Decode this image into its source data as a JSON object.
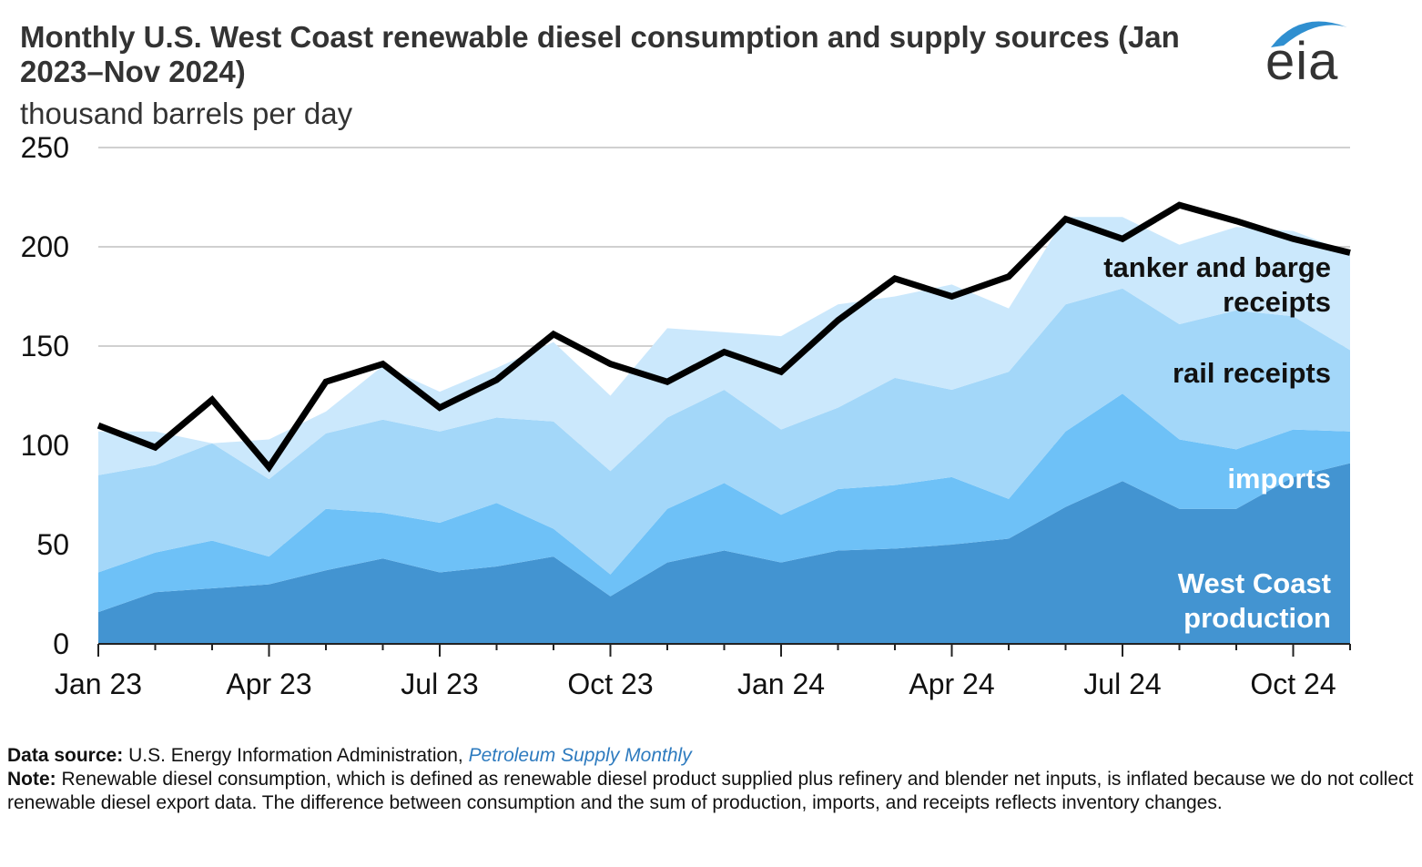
{
  "header": {
    "title": "Monthly U.S. West Coast renewable diesel consumption and supply sources (Jan 2023–Nov 2024)",
    "units": "thousand barrels per day",
    "logo": "eia"
  },
  "chart_data": {
    "type": "area",
    "stacked": true,
    "title": "Monthly U.S. West Coast renewable diesel consumption and supply sources (Jan 2023–Nov 2024)",
    "ylabel": "thousand barrels per day",
    "ylim": [
      0,
      250
    ],
    "yticks": [
      0,
      50,
      100,
      150,
      200,
      250
    ],
    "grid": true,
    "x": [
      "Jan 23",
      "Feb 23",
      "Mar 23",
      "Apr 23",
      "May 23",
      "Jun 23",
      "Jul 23",
      "Aug 23",
      "Sep 23",
      "Oct 23",
      "Nov 23",
      "Dec 23",
      "Jan 24",
      "Feb 24",
      "Mar 24",
      "Apr 24",
      "May 24",
      "Jun 24",
      "Jul 24",
      "Aug 24",
      "Sep 24",
      "Oct 24",
      "Nov 24"
    ],
    "xtick_labels": [
      {
        "index": 0,
        "label": "Jan 23"
      },
      {
        "index": 3,
        "label": "Apr 23"
      },
      {
        "index": 6,
        "label": "Jul 23"
      },
      {
        "index": 9,
        "label": "Oct 23"
      },
      {
        "index": 12,
        "label": "Jan 24"
      },
      {
        "index": 15,
        "label": "Apr 24"
      },
      {
        "index": 18,
        "label": "Jul 24"
      },
      {
        "index": 21,
        "label": "Oct 24"
      }
    ],
    "series": [
      {
        "name": "West Coast production",
        "label": "West Coast\nproduction",
        "color": "#4394d1",
        "label_color": "#ffffff",
        "values": [
          16,
          26,
          28,
          30,
          37,
          43,
          36,
          39,
          44,
          24,
          41,
          47,
          41,
          47,
          48,
          50,
          53,
          69,
          82,
          68,
          68,
          84,
          91
        ]
      },
      {
        "name": "imports",
        "label": "imports",
        "color": "#6ec1f7",
        "label_color": "#ffffff",
        "values": [
          20,
          20,
          24,
          14,
          31,
          23,
          25,
          32,
          14,
          11,
          27,
          34,
          24,
          31,
          32,
          34,
          20,
          38,
          44,
          35,
          30,
          24,
          16
        ]
      },
      {
        "name": "rail receipts",
        "label": "rail receipts",
        "color": "#a3d7f9",
        "label_color": "#111111",
        "values": [
          49,
          44,
          49,
          39,
          38,
          47,
          46,
          43,
          54,
          52,
          46,
          47,
          43,
          41,
          54,
          44,
          64,
          64,
          53,
          58,
          70,
          57,
          41
        ]
      },
      {
        "name": "tanker and barge receipts",
        "label": "tanker and barge\nreceipts",
        "color": "#cbe8fc",
        "label_color": "#111111",
        "values": [
          22,
          17,
          0,
          20,
          11,
          27,
          20,
          25,
          40,
          38,
          45,
          29,
          47,
          52,
          41,
          53,
          32,
          44,
          36,
          40,
          42,
          43,
          49
        ]
      }
    ],
    "line": {
      "name": "consumption",
      "color": "#000000",
      "values": [
        110,
        99,
        123,
        89,
        132,
        141,
        119,
        133,
        156,
        141,
        132,
        147,
        137,
        163,
        184,
        175,
        185,
        214,
        204,
        221,
        213,
        204,
        197
      ]
    }
  },
  "footer": {
    "source_label": "Data source:",
    "source_text": "U.S. Energy Information Administration,",
    "source_link": "Petroleum Supply Monthly",
    "note_label": "Note:",
    "note_text": "Renewable diesel consumption, which is defined as renewable diesel product supplied plus refinery and blender net inputs, is inflated because we do not collect renewable diesel export data. The difference between consumption and the sum of production, imports, and receipts reflects inventory changes."
  }
}
